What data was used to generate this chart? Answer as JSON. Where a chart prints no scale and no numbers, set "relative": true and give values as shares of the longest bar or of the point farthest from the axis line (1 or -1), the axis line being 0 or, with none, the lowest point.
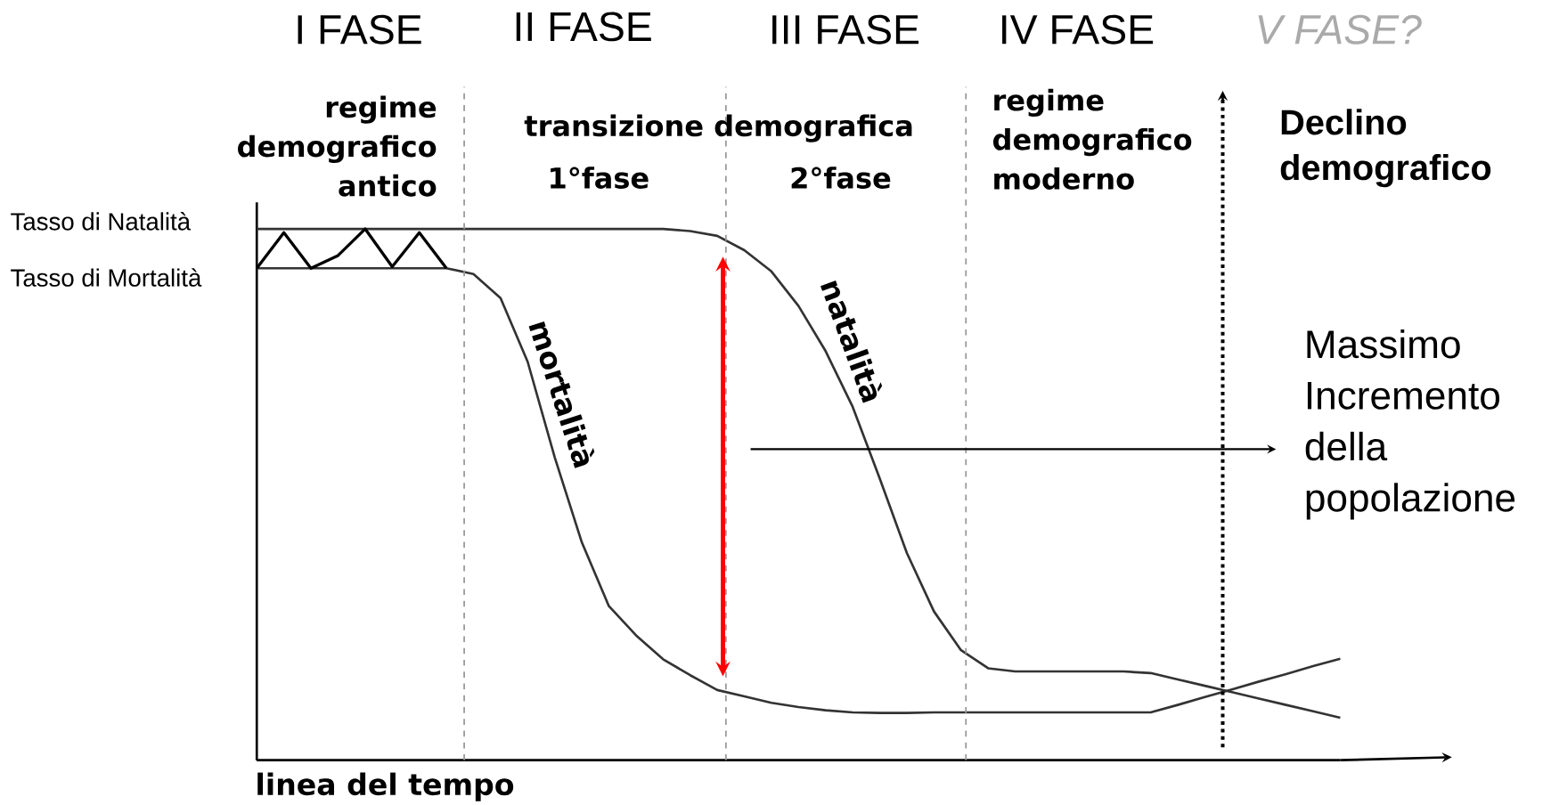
{
  "chart_data": {
    "type": "line",
    "relative": true,
    "xlabel": "linea del tempo",
    "categories": [
      null,
      null,
      null,
      null,
      null,
      null,
      null,
      null,
      null,
      null,
      null,
      null,
      null,
      null,
      null,
      null,
      null,
      null,
      null,
      null,
      null,
      null,
      null,
      null,
      null,
      null,
      null,
      null,
      null,
      null,
      null,
      null,
      null,
      null,
      null,
      null,
      null,
      null,
      null,
      null,
      null
    ],
    "series": [
      {
        "name": "natalità",
        "color": "#333333",
        "values": [
          1.0,
          1.0,
          1.0,
          1.0,
          1.0,
          1.0,
          1.0,
          1.0,
          1.0,
          1.0,
          1.0,
          1.0,
          1.0,
          1.0,
          1.0,
          1.0,
          0.996,
          0.987,
          0.96,
          0.92,
          0.855,
          0.77,
          0.665,
          0.53,
          0.39,
          0.28,
          0.207,
          0.173,
          0.167,
          0.167,
          0.167,
          0.167,
          0.167,
          0.164,
          0.152,
          0.14,
          0.128,
          0.116,
          0.104,
          0.092,
          0.08
        ]
      },
      {
        "name": "mortalità",
        "color": "#333333",
        "values": [
          0.926,
          0.926,
          0.926,
          0.926,
          0.926,
          0.926,
          0.926,
          0.926,
          0.915,
          0.87,
          0.75,
          0.57,
          0.41,
          0.29,
          0.235,
          0.19,
          0.16,
          0.132,
          0.12,
          0.108,
          0.1,
          0.094,
          0.09,
          0.089,
          0.089,
          0.09,
          0.09,
          0.09,
          0.09,
          0.09,
          0.09,
          0.09,
          0.09,
          0.09,
          0.104,
          0.119,
          0.133,
          0.148,
          0.162,
          0.177,
          0.191
        ]
      },
      {
        "color": "#000000",
        "values": [
          0.926,
          0.993,
          0.926,
          0.95,
          1.0,
          0.929,
          0.993,
          0.926,
          null,
          null,
          null,
          null,
          null,
          null,
          null,
          null,
          null,
          null,
          null,
          null,
          null,
          null,
          null,
          null,
          null,
          null,
          null,
          null,
          null,
          null,
          null,
          null,
          null,
          null,
          null,
          null,
          null,
          null,
          null,
          null,
          null
        ]
      }
    ],
    "annotations": [
      "I FASE",
      "II FASE",
      "III FASE",
      "IV FASE",
      "V FASE?",
      "regime demografico antico",
      "transizione demografica",
      "1°fase",
      "2°fase",
      "regime demografico moderno",
      "Declino demografico",
      "Tasso di Natalità",
      "Tasso di Mortalità",
      "Massimo Incremento della popolazione"
    ]
  }
}
